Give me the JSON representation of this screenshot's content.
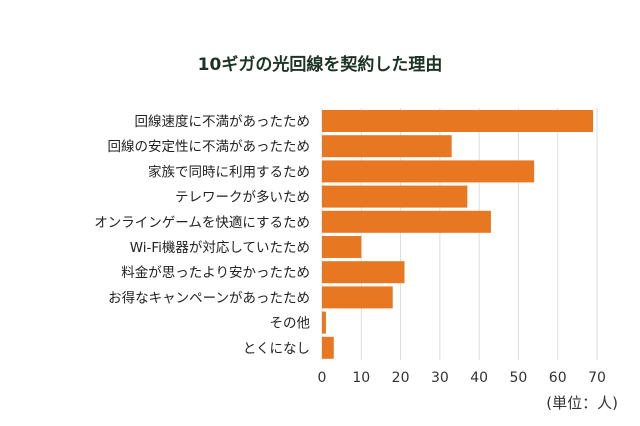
{
  "chart_data": {
    "type": "bar",
    "orientation": "horizontal",
    "title": "10ギガの光回線を契約した理由",
    "categories": [
      "回線速度に不満があったため",
      "回線の安定性に不満があったため",
      "家族で同時に利用するため",
      "テレワークが多いため",
      "オンラインゲームを快適にするため",
      "Wi-Fi機器が対応していたため",
      "料金が思ったより安かったため",
      "お得なキャンペーンがあったため",
      "その他",
      "とくになし"
    ],
    "values": [
      69,
      33,
      54,
      37,
      43,
      10,
      21,
      18,
      1,
      3
    ],
    "xlim": [
      0,
      70
    ],
    "xticks": [
      0,
      10,
      20,
      30,
      40,
      50,
      60,
      70
    ],
    "unit_label": "(単位：人)",
    "grid": "vertical",
    "legend": "none",
    "bar_color": "#e87722",
    "grid_color": "#dddddd"
  }
}
